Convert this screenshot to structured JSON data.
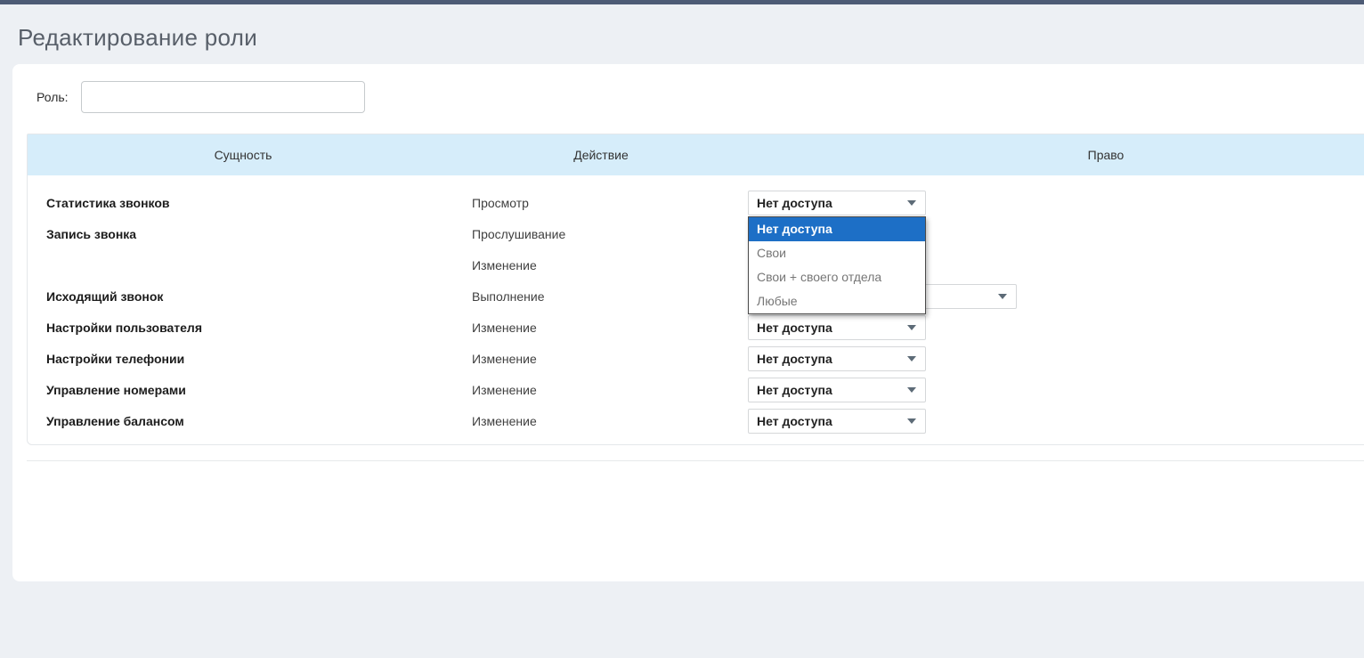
{
  "page": {
    "title": "Редактирование роли"
  },
  "form": {
    "role_label": "Роль:",
    "role_value": ""
  },
  "table": {
    "headers": [
      "Сущность",
      "Действие",
      "Право"
    ],
    "rows": [
      {
        "entity": "Статистика звонков",
        "action": "Просмотр",
        "right": "Нет доступа"
      },
      {
        "entity": "Запись звонка",
        "action": "Прослушивание",
        "right": ""
      },
      {
        "entity": "",
        "action": "Изменение",
        "right": ""
      },
      {
        "entity": "Исходящий звонок",
        "action": "Выполнение",
        "right": ""
      },
      {
        "entity": "Настройки пользователя",
        "action": "Изменение",
        "right": "Нет доступа"
      },
      {
        "entity": "Настройки телефонии",
        "action": "Изменение",
        "right": "Нет доступа"
      },
      {
        "entity": "Управление номерами",
        "action": "Изменение",
        "right": "Нет доступа"
      },
      {
        "entity": "Управление балансом",
        "action": "Изменение",
        "right": "Нет доступа"
      }
    ]
  },
  "dropdown": {
    "open_for_row": 0,
    "selected_value": "Нет доступа",
    "highlighted_option": "Нет доступа",
    "options": [
      "Нет доступа",
      "Свои",
      "Свои + своего отдела",
      "Любые"
    ]
  },
  "colors": {
    "top_bar": "#4d5b75",
    "page_background": "#edf0f4",
    "table_header_background": "#d6edfa",
    "dropdown_highlight": "#1d6fc6"
  },
  "icons": {
    "select_caret": "chevron-down-icon"
  }
}
